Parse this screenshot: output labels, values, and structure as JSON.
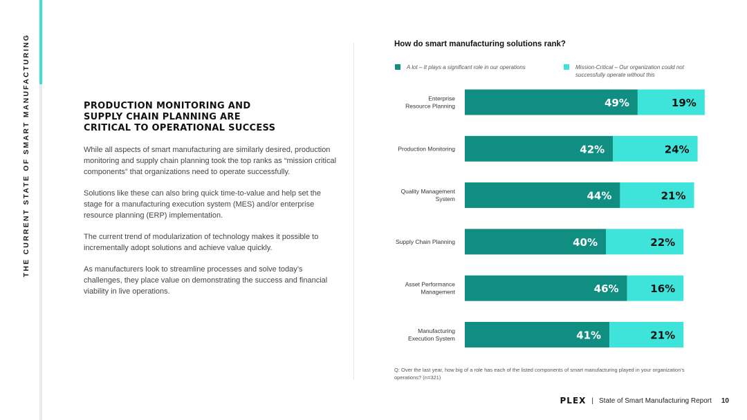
{
  "side_title": "THE CURRENT STATE OF SMART MANUFACTURING",
  "headline": [
    "PRODUCTION MONITORING AND",
    "SUPPLY CHAIN PLANNING ARE",
    "CRITICAL TO OPERATIONAL SUCCESS"
  ],
  "body": [
    "While all aspects of smart manufacturing are similarly desired, production monitoring and supply chain planning took the top ranks as “mission critical components” that organizations need to operate successfully.",
    "Solutions like these can also bring quick time-to-value and help set the stage for a manufacturing execution system (MES) and/or enterprise resource planning (ERP) implementation.",
    "The current trend of modularization of technology makes it possible to incrementally adopt solutions and achieve value quickly.",
    "As manufacturers look to streamline processes and solve today’s challenges, they place value on demonstrating the success and financial viability in live operations."
  ],
  "footnote": "Q: Over the last year, how big of a role has each of the listed components of smart manufacturing played in your organization’s operations? (n=321)",
  "footer": {
    "logo": "PLEX",
    "separator": "|",
    "report": "State of Smart Manufacturing Report",
    "page": "10"
  },
  "colors": {
    "teal_dark": "#108e82",
    "teal_light": "#3ee3da",
    "accent": "#3fe0d0"
  },
  "chart_data": {
    "type": "bar",
    "orientation": "horizontal",
    "stacked": true,
    "title": "How do smart manufacturing solutions rank?",
    "categories": [
      [
        "Enterprise",
        "Resource Planning"
      ],
      [
        "Production Monitoring"
      ],
      [
        "Quality Management",
        "System"
      ],
      [
        "Supply Chain Planning"
      ],
      [
        "Asset Performance",
        "Management"
      ],
      [
        "Manufacturing",
        "Execution System"
      ]
    ],
    "series": [
      {
        "name": "A lot – It plays a significant role in our operations",
        "color": "#108e82",
        "values": [
          49,
          42,
          44,
          40,
          46,
          41
        ],
        "labels": [
          "49%",
          "42%",
          "44%",
          "40%",
          "46%",
          "41%"
        ]
      },
      {
        "name": "Mission-Critical – Our organization could not successfully operate without this",
        "color": "#3ee3da",
        "values": [
          19,
          24,
          21,
          22,
          16,
          21
        ],
        "labels": [
          "19%",
          "24%",
          "21%",
          "22%",
          "16%",
          "21%"
        ]
      }
    ],
    "legend_position": "top",
    "grid": false
  }
}
